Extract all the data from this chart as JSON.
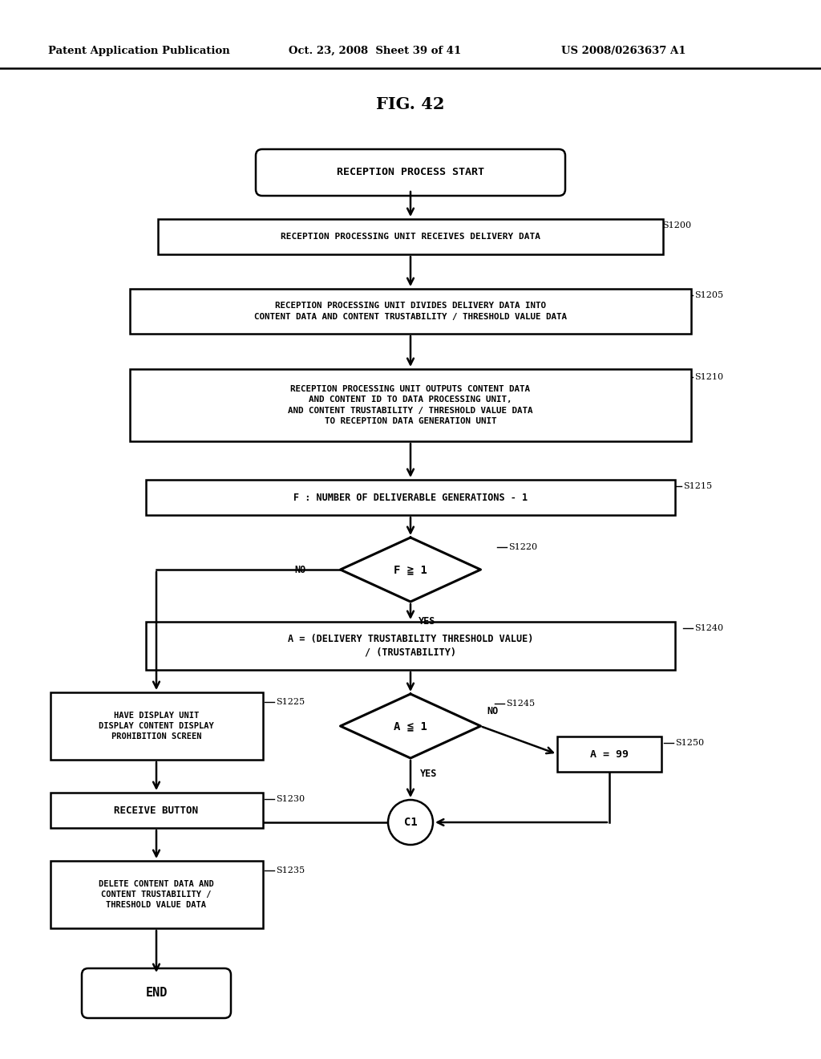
{
  "bg_color": "#ffffff",
  "header_left": "Patent Application Publication",
  "header_mid": "Oct. 23, 2008  Sheet 39 of 41",
  "header_right": "US 2008/0263637 A1",
  "fig_title": "FIG. 42",
  "lw": 1.8,
  "diamond_lw": 2.2
}
